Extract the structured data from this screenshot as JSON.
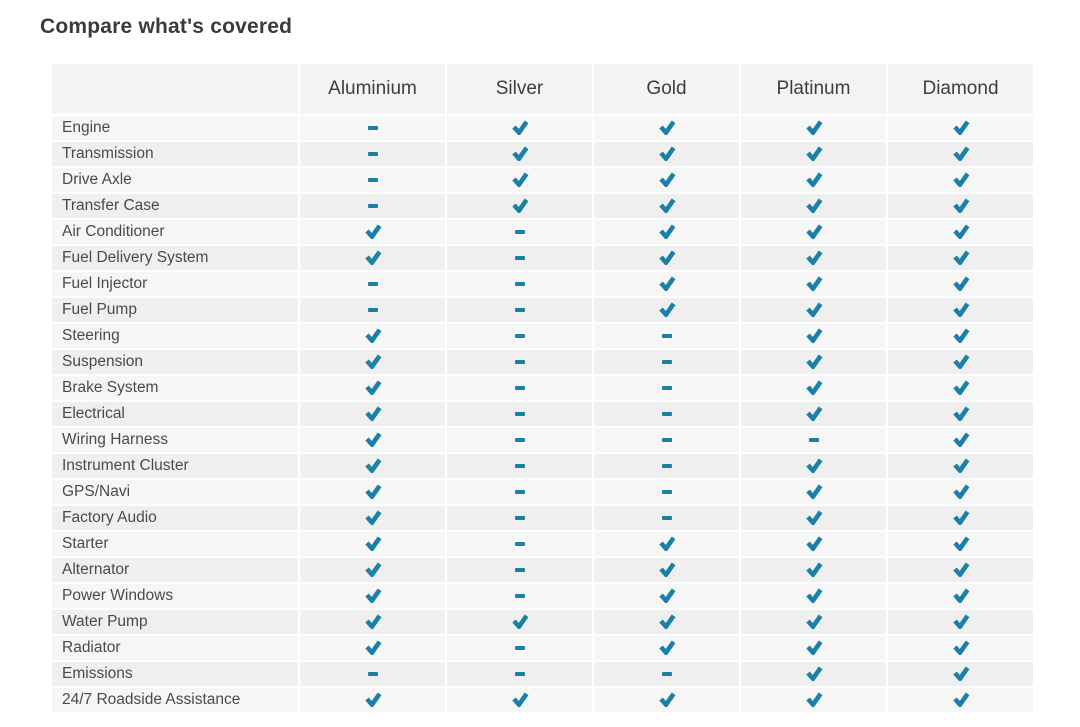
{
  "page": {
    "title": "Compare what's covered"
  },
  "colors": {
    "check": "#1b80a7",
    "row_light": "#f6f6f6",
    "row_dark": "#efefef",
    "header_bg": "#f4f4f4",
    "text": "#4a4a4a"
  },
  "icons": {
    "covered": "check-icon",
    "not_covered": "dash-icon"
  },
  "table": {
    "columns": [
      "Aluminium",
      "Silver",
      "Gold",
      "Platinum",
      "Diamond"
    ],
    "rows": [
      {
        "label": "Engine",
        "values": [
          "dash",
          "check",
          "check",
          "check",
          "check"
        ]
      },
      {
        "label": "Transmission",
        "values": [
          "dash",
          "check",
          "check",
          "check",
          "check"
        ]
      },
      {
        "label": "Drive Axle",
        "values": [
          "dash",
          "check",
          "check",
          "check",
          "check"
        ]
      },
      {
        "label": "Transfer Case",
        "values": [
          "dash",
          "check",
          "check",
          "check",
          "check"
        ]
      },
      {
        "label": "Air Conditioner",
        "values": [
          "check",
          "dash",
          "check",
          "check",
          "check"
        ]
      },
      {
        "label": "Fuel Delivery System",
        "values": [
          "check",
          "dash",
          "check",
          "check",
          "check"
        ]
      },
      {
        "label": "Fuel Injector",
        "values": [
          "dash",
          "dash",
          "check",
          "check",
          "check"
        ]
      },
      {
        "label": "Fuel Pump",
        "values": [
          "dash",
          "dash",
          "check",
          "check",
          "check"
        ]
      },
      {
        "label": "Steering",
        "values": [
          "check",
          "dash",
          "dash",
          "check",
          "check"
        ]
      },
      {
        "label": "Suspension",
        "values": [
          "check",
          "dash",
          "dash",
          "check",
          "check"
        ]
      },
      {
        "label": "Brake System",
        "values": [
          "check",
          "dash",
          "dash",
          "check",
          "check"
        ]
      },
      {
        "label": "Electrical",
        "values": [
          "check",
          "dash",
          "dash",
          "check",
          "check"
        ]
      },
      {
        "label": "Wiring Harness",
        "values": [
          "check",
          "dash",
          "dash",
          "dash",
          "check"
        ]
      },
      {
        "label": "Instrument Cluster",
        "values": [
          "check",
          "dash",
          "dash",
          "check",
          "check"
        ]
      },
      {
        "label": "GPS/Navi",
        "values": [
          "check",
          "dash",
          "dash",
          "check",
          "check"
        ]
      },
      {
        "label": "Factory Audio",
        "values": [
          "check",
          "dash",
          "dash",
          "check",
          "check"
        ]
      },
      {
        "label": "Starter",
        "values": [
          "check",
          "dash",
          "check",
          "check",
          "check"
        ]
      },
      {
        "label": "Alternator",
        "values": [
          "check",
          "dash",
          "check",
          "check",
          "check"
        ]
      },
      {
        "label": "Power Windows",
        "values": [
          "check",
          "dash",
          "check",
          "check",
          "check"
        ]
      },
      {
        "label": "Water Pump",
        "values": [
          "check",
          "check",
          "check",
          "check",
          "check"
        ]
      },
      {
        "label": "Radiator",
        "values": [
          "check",
          "dash",
          "check",
          "check",
          "check"
        ]
      },
      {
        "label": "Emissions",
        "values": [
          "dash",
          "dash",
          "dash",
          "check",
          "check"
        ]
      },
      {
        "label": "24/7 Roadside Assistance",
        "values": [
          "check",
          "check",
          "check",
          "check",
          "check"
        ]
      }
    ]
  }
}
